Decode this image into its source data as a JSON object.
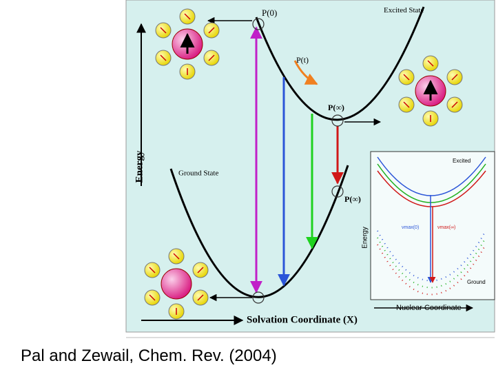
{
  "figure": {
    "main": {
      "p0": "P(0)",
      "excited_state": "Excited State",
      "pt": "P(t)",
      "pinf_excited": "P(∞)",
      "ground_state": "Ground State",
      "pinf_ground": "P(∞)",
      "y_axis": "Energy",
      "x_axis": "Solvation Coordinate (X)"
    },
    "inset": {
      "excited": "Excited",
      "y_axis": "Energy",
      "numax0": "νmax(0)",
      "numaxinf": "νmax(∞)",
      "ground": "Ground",
      "x_axis": "Nuclear Coordinate"
    }
  },
  "caption": "Pal and Zewail, Chem. Rev. (2004)"
}
